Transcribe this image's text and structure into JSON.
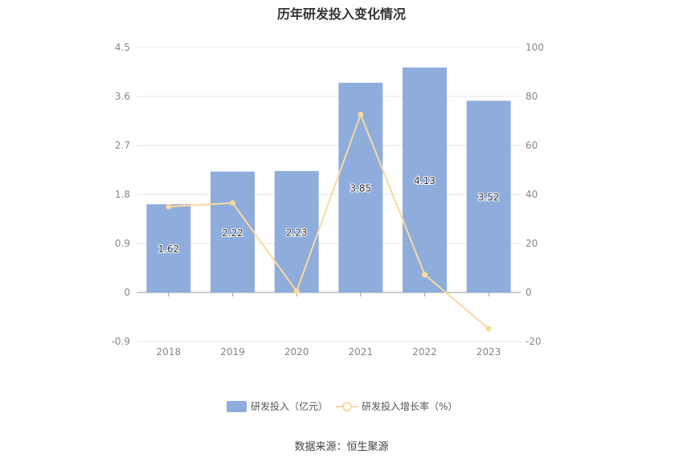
{
  "chart_data": {
    "type": "bar",
    "title": "历年研发投入变化情况",
    "categories": [
      "2018",
      "2019",
      "2020",
      "2021",
      "2022",
      "2023"
    ],
    "series": [
      {
        "name": "研发投入（亿元）",
        "type": "bar",
        "axis": "left",
        "values": [
          1.62,
          2.22,
          2.23,
          3.85,
          4.13,
          3.52
        ],
        "color": "#8eaddc"
      },
      {
        "name": "研发投入增长率（%）",
        "type": "line",
        "axis": "right",
        "values": [
          35.0,
          36.5,
          0.5,
          72.6,
          7.3,
          -14.8
        ],
        "color": "#f9d9a0"
      }
    ],
    "y_left": {
      "ticks": [
        "4.5",
        "3.6",
        "2.7",
        "1.8",
        "0.9",
        "0",
        "-0.9"
      ],
      "ylim": [
        -0.9,
        4.5
      ]
    },
    "y_right": {
      "ticks": [
        "100",
        "80",
        "60",
        "40",
        "20",
        "0",
        "-20"
      ],
      "ylim": [
        -20,
        100
      ]
    },
    "legend": "bottom-center",
    "grid": true
  },
  "source": "数据来源：恒生聚源"
}
